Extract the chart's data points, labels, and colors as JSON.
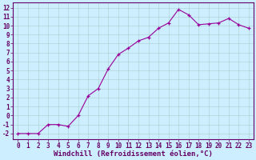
{
  "x": [
    0,
    1,
    2,
    3,
    4,
    5,
    6,
    7,
    8,
    9,
    10,
    11,
    12,
    13,
    14,
    15,
    16,
    17,
    18,
    19,
    20,
    21,
    22,
    23
  ],
  "y": [
    -2,
    -2,
    -2,
    -1,
    -1,
    -1.2,
    0,
    2.2,
    3,
    5.2,
    6.8,
    7.5,
    8.3,
    8.7,
    9.7,
    10.3,
    11.8,
    11.2,
    10.1,
    10.2,
    10.3,
    10.8,
    10.1,
    9.7
  ],
  "line_color": "#990099",
  "marker": "+",
  "bg_color": "#cceeff",
  "grid_color": "#aacccc",
  "xlabel": "Windchill (Refroidissement éolien,°C)",
  "ylabel_ticks": [
    -2,
    -1,
    0,
    1,
    2,
    3,
    4,
    5,
    6,
    7,
    8,
    9,
    10,
    11,
    12
  ],
  "xlim": [
    -0.5,
    23.5
  ],
  "ylim": [
    -2.6,
    12.6
  ],
  "axis_color": "#660066",
  "tick_color": "#660066",
  "xlabel_color": "#660066",
  "font_size": 5.5,
  "xlabel_fontsize": 6.5,
  "marker_size": 3,
  "linewidth": 0.8
}
